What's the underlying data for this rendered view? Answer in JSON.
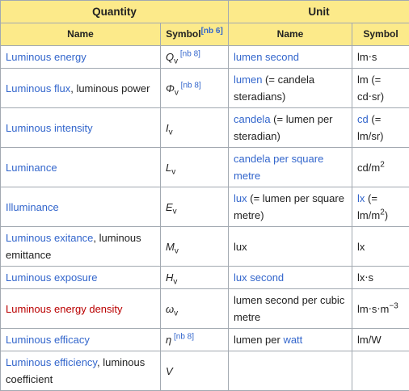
{
  "table": {
    "header_top": [
      "Quantity",
      "Unit"
    ],
    "header": [
      [
        {
          "text": "Name"
        }
      ],
      [
        {
          "text": "Symbol"
        },
        {
          "text": "[nb 6]",
          "sup": true,
          "color": "#3366cc"
        }
      ],
      [
        {
          "text": "Name"
        }
      ],
      [
        {
          "text": "Symbol"
        }
      ]
    ],
    "rows": [
      [
        [
          {
            "text": "Luminous energy",
            "color": "#3366cc"
          }
        ],
        [
          {
            "text": "Q",
            "italic": true
          },
          {
            "text": "v",
            "sub": true
          },
          {
            "text": " [nb 8]",
            "sup": true,
            "color": "#3366cc"
          }
        ],
        [
          {
            "text": "lumen second",
            "color": "#3366cc"
          }
        ],
        [
          {
            "text": "lm⋅s"
          }
        ]
      ],
      [
        [
          {
            "text": "Luminous flux",
            "color": "#3366cc"
          },
          {
            "text": ", luminous power"
          }
        ],
        [
          {
            "text": "Φ",
            "italic": true
          },
          {
            "text": "v",
            "sub": true
          },
          {
            "text": " [nb 8]",
            "sup": true,
            "color": "#3366cc"
          }
        ],
        [
          {
            "text": "lumen",
            "color": "#3366cc"
          },
          {
            "text": " (= candela steradians)"
          }
        ],
        [
          {
            "text": "lm (= cd⋅sr)"
          }
        ]
      ],
      [
        [
          {
            "text": "Luminous intensity",
            "color": "#3366cc"
          }
        ],
        [
          {
            "text": "I",
            "italic": true
          },
          {
            "text": "v",
            "sub": true
          }
        ],
        [
          {
            "text": "candela",
            "color": "#3366cc"
          },
          {
            "text": " (= lumen per steradian)"
          }
        ],
        [
          {
            "text": "cd",
            "color": "#3366cc"
          },
          {
            "text": " (= lm/sr)"
          }
        ]
      ],
      [
        [
          {
            "text": "Luminance",
            "color": "#3366cc"
          }
        ],
        [
          {
            "text": "L",
            "italic": true
          },
          {
            "text": "v",
            "sub": true
          }
        ],
        [
          {
            "text": "candela per square metre",
            "color": "#3366cc"
          }
        ],
        [
          {
            "text": "cd/m"
          },
          {
            "text": "2",
            "sup": true
          }
        ]
      ],
      [
        [
          {
            "text": "Illuminance",
            "color": "#3366cc"
          }
        ],
        [
          {
            "text": "E",
            "italic": true
          },
          {
            "text": "v",
            "sub": true
          }
        ],
        [
          {
            "text": "lux",
            "color": "#3366cc"
          },
          {
            "text": " (= lumen per square metre)"
          }
        ],
        [
          {
            "text": "lx",
            "color": "#3366cc"
          },
          {
            "text": " (= lm/m"
          },
          {
            "text": "2",
            "sup": true
          },
          {
            "text": ")"
          }
        ]
      ],
      [
        [
          {
            "text": "Luminous exitance",
            "color": "#3366cc"
          },
          {
            "text": ", luminous emittance"
          }
        ],
        [
          {
            "text": "M",
            "italic": true
          },
          {
            "text": "v",
            "sub": true
          }
        ],
        [
          {
            "text": "lux"
          }
        ],
        [
          {
            "text": "lx"
          }
        ]
      ],
      [
        [
          {
            "text": "Luminous exposure",
            "color": "#3366cc"
          }
        ],
        [
          {
            "text": "H",
            "italic": true
          },
          {
            "text": "v",
            "sub": true
          }
        ],
        [
          {
            "text": "lux second",
            "color": "#3366cc"
          }
        ],
        [
          {
            "text": "lx⋅s"
          }
        ]
      ],
      [
        [
          {
            "text": "Luminous energy density",
            "color": "#ba0000"
          }
        ],
        [
          {
            "text": "ω",
            "italic": true
          },
          {
            "text": "v",
            "sub": true
          }
        ],
        [
          {
            "text": "lumen second per cubic metre"
          }
        ],
        [
          {
            "text": "lm⋅s⋅m"
          },
          {
            "text": "−3",
            "sup": true
          }
        ]
      ],
      [
        [
          {
            "text": "Luminous efficacy",
            "color": "#3366cc"
          }
        ],
        [
          {
            "text": "η",
            "italic": true
          },
          {
            "text": " [nb 8]",
            "sup": true,
            "color": "#3366cc"
          }
        ],
        [
          {
            "text": "lumen per "
          },
          {
            "text": "watt",
            "color": "#3366cc"
          }
        ],
        [
          {
            "text": "lm/W"
          }
        ]
      ],
      [
        [
          {
            "text": "Luminous efficiency",
            "color": "#3366cc"
          },
          {
            "text": ", luminous coefficient"
          }
        ],
        [
          {
            "text": "V",
            "italic": true
          }
        ],
        [],
        []
      ]
    ]
  }
}
